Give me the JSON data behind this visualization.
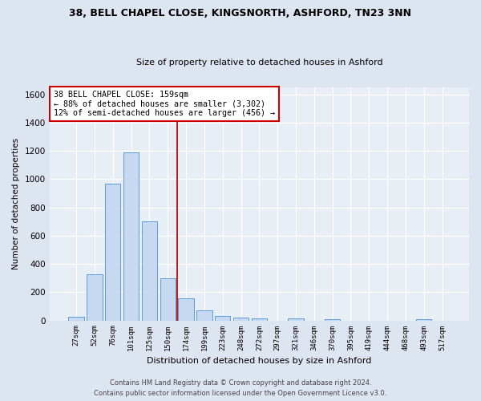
{
  "title1": "38, BELL CHAPEL CLOSE, KINGSNORTH, ASHFORD, TN23 3NN",
  "title2": "Size of property relative to detached houses in Ashford",
  "xlabel": "Distribution of detached houses by size in Ashford",
  "ylabel": "Number of detached properties",
  "footer1": "Contains HM Land Registry data © Crown copyright and database right 2024.",
  "footer2": "Contains public sector information licensed under the Open Government Licence v3.0.",
  "bar_labels": [
    "27sqm",
    "52sqm",
    "76sqm",
    "101sqm",
    "125sqm",
    "150sqm",
    "174sqm",
    "199sqm",
    "223sqm",
    "248sqm",
    "272sqm",
    "297sqm",
    "321sqm",
    "346sqm",
    "370sqm",
    "395sqm",
    "419sqm",
    "444sqm",
    "468sqm",
    "493sqm",
    "517sqm"
  ],
  "bar_values": [
    25,
    325,
    970,
    1190,
    700,
    300,
    155,
    70,
    30,
    20,
    15,
    0,
    15,
    0,
    10,
    0,
    0,
    0,
    0,
    10,
    0
  ],
  "bar_color": "#c6d9f1",
  "bar_edge_color": "#5b9bd5",
  "property_label": "38 BELL CHAPEL CLOSE: 159sqm",
  "annotation_line1": "← 88% of detached houses are smaller (3,302)",
  "annotation_line2": "12% of semi-detached houses are larger (456) →",
  "vline_color": "#cc0000",
  "vline_x": 5.5,
  "annotation_box_color": "#ffffff",
  "annotation_box_edge": "#cc0000",
  "ylim": [
    0,
    1650
  ],
  "yticks": [
    0,
    200,
    400,
    600,
    800,
    1000,
    1200,
    1400,
    1600
  ],
  "background_color": "#dde6f0",
  "plot_bg_color": "#e8eef6",
  "fig_width": 6.0,
  "fig_height": 5.0,
  "fig_dpi": 100
}
